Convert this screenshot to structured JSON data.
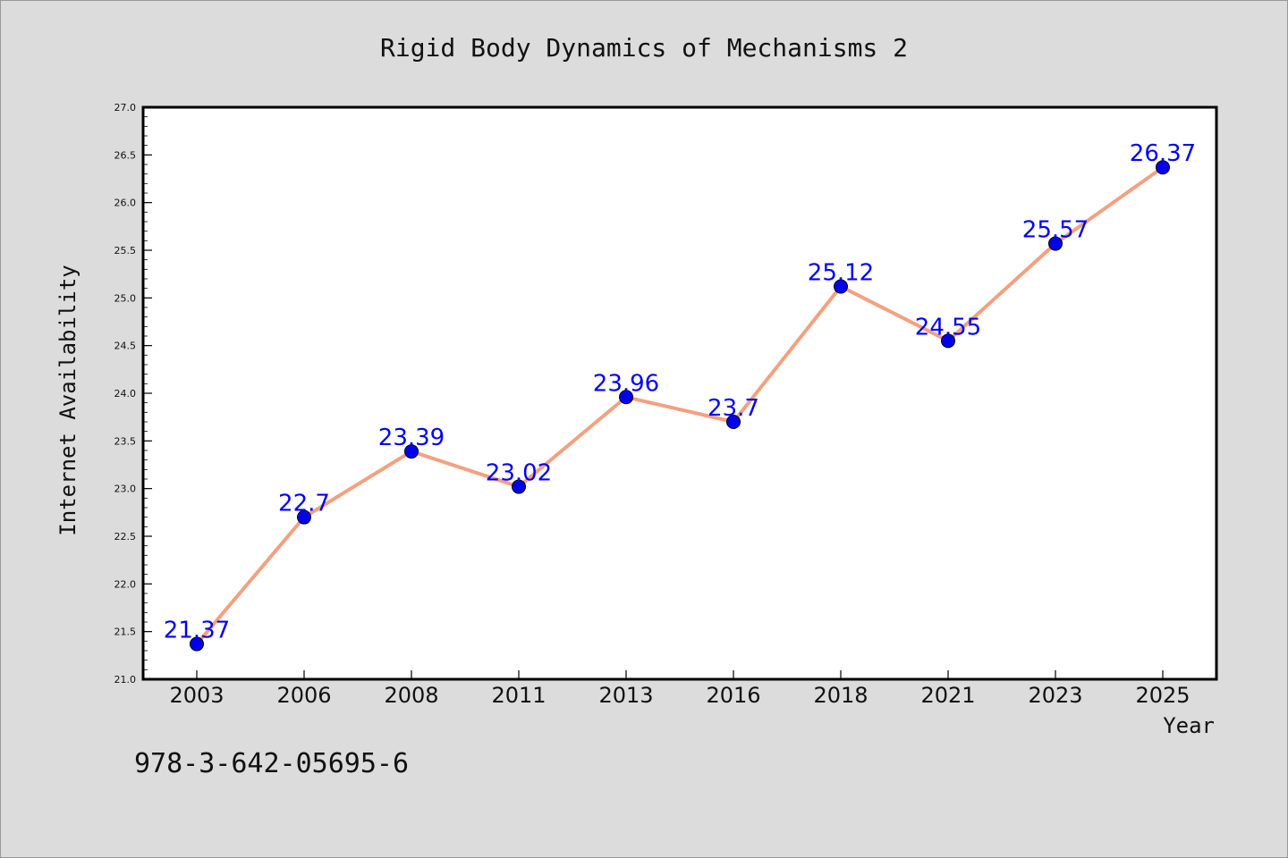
{
  "chart_data": {
    "type": "line",
    "title": "Rigid Body Dynamics of Mechanisms 2",
    "xlabel": "Year",
    "ylabel": "Internet Availability",
    "categories": [
      "2003",
      "2006",
      "2008",
      "2011",
      "2013",
      "2016",
      "2018",
      "2021",
      "2023",
      "2025"
    ],
    "values": [
      21.37,
      22.7,
      23.39,
      23.02,
      23.96,
      23.7,
      25.12,
      24.55,
      25.57,
      26.37
    ],
    "data_labels": [
      "21.37",
      "22.7",
      "23.39",
      "23.02",
      "23.96",
      "23.7",
      "25.12",
      "24.55",
      "25.57",
      "26.37"
    ],
    "ylim": [
      21.0,
      27.0
    ],
    "yticks": [
      "21.0",
      "21.5",
      "22.0",
      "22.5",
      "23.0",
      "23.5",
      "24.0",
      "24.5",
      "25.0",
      "25.5",
      "26.0",
      "26.5",
      "27.0"
    ],
    "grid": false,
    "line_color": "#f4a07f",
    "marker_color": "#0000ee",
    "label_color": "#0000ff"
  },
  "footer": {
    "isbn": "978-3-642-05695-6"
  }
}
